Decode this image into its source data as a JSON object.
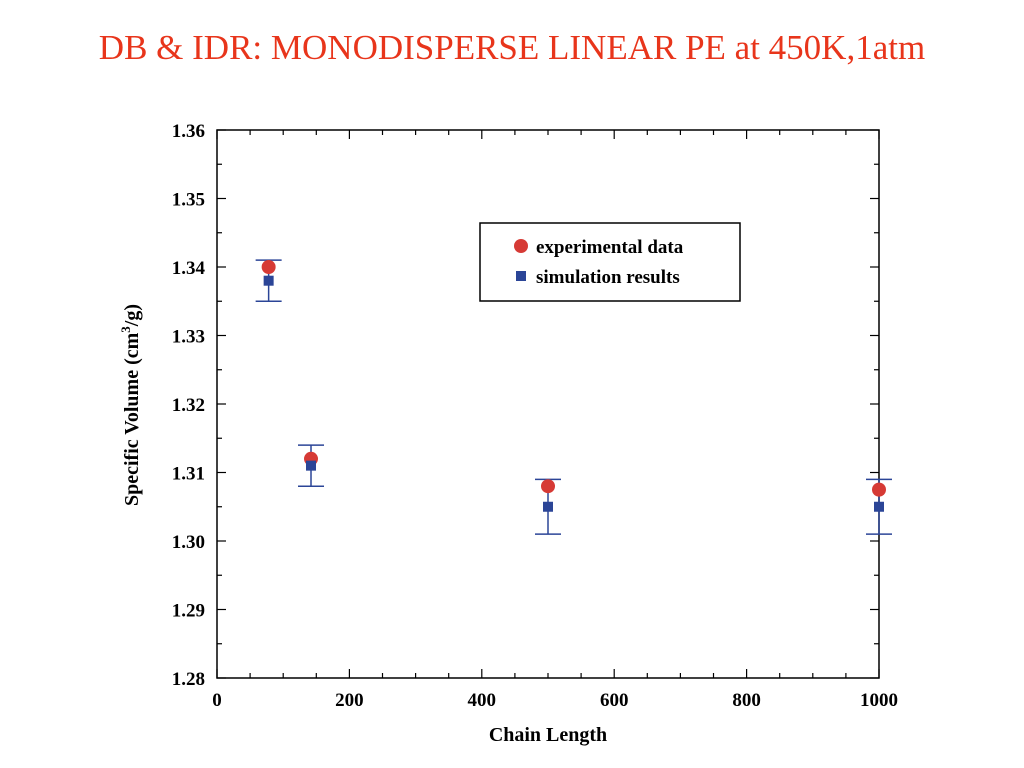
{
  "slide": {
    "title": "DB & IDR: MONODISPERSE LINEAR PE at 450K,1atm"
  },
  "colors": {
    "title": "#e8351b",
    "experimental": "#d63a35",
    "simulation": "#2b4597",
    "errorbar": "#2b4597",
    "axis": "#000000"
  },
  "chart_data": {
    "type": "scatter",
    "xlabel": "Chain Length",
    "ylabel_main": "Specific Volume (cm",
    "ylabel_sup": "3",
    "ylabel_tail": "/g)",
    "xlim": [
      0,
      1000
    ],
    "ylim": [
      1.28,
      1.36
    ],
    "x_ticks": [
      0,
      200,
      400,
      600,
      800,
      1000
    ],
    "y_ticks": [
      1.28,
      1.29,
      1.3,
      1.31,
      1.32,
      1.33,
      1.34,
      1.35,
      1.36
    ],
    "y_tick_labels": [
      "1.28",
      "1.29",
      "1.30",
      "1.31",
      "1.32",
      "1.33",
      "1.34",
      "1.35",
      "1.36"
    ],
    "grid": false,
    "legend_position": "top-right",
    "series": [
      {
        "name": "experimental data",
        "marker": "circle",
        "points": [
          {
            "x": 78,
            "y": 1.34
          },
          {
            "x": 142,
            "y": 1.312
          },
          {
            "x": 500,
            "y": 1.308
          },
          {
            "x": 1000,
            "y": 1.3075
          }
        ]
      },
      {
        "name": "simulation results",
        "marker": "square",
        "points": [
          {
            "x": 78,
            "y": 1.338,
            "err_low": 1.335,
            "err_high": 1.341
          },
          {
            "x": 142,
            "y": 1.311,
            "err_low": 1.308,
            "err_high": 1.314
          },
          {
            "x": 500,
            "y": 1.305,
            "err_low": 1.301,
            "err_high": 1.309
          },
          {
            "x": 1000,
            "y": 1.305,
            "err_low": 1.301,
            "err_high": 1.309
          }
        ]
      }
    ]
  }
}
